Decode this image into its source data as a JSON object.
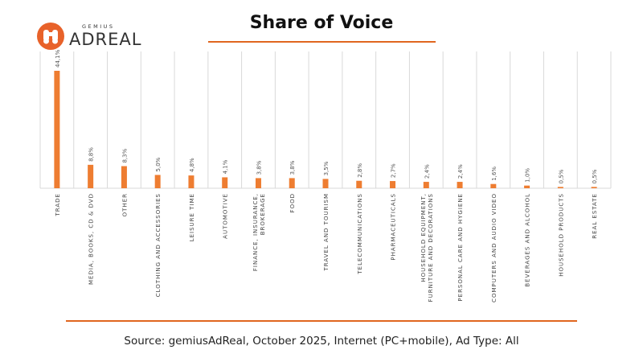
{
  "logo": {
    "small": "GEMIUS",
    "big": "ADREAL"
  },
  "title": "Share of Voice",
  "source": "Source: gemiusAdReal, October 2025, Internet (PC+mobile), Ad Type: All",
  "colors": {
    "bar": "#ee7d31",
    "accent": "#e0661f",
    "grid": "#d9d9d9"
  },
  "chart_data": {
    "type": "bar",
    "categories": [
      [
        "TRADE"
      ],
      [
        "MEDIA, BOOKS, CD & DVD"
      ],
      [
        "OTHER"
      ],
      [
        "CLOTHING AND ACCESSORIES"
      ],
      [
        "LEISURE TIME"
      ],
      [
        "AUTOMOTIVE"
      ],
      [
        "FINANCE, INSURANCE,",
        "BROKERAGE"
      ],
      [
        "FOOD"
      ],
      [
        "TRAVEL AND TOURISM"
      ],
      [
        "TELECOMMUNICATIONS"
      ],
      [
        "PHARMACEUTICALS"
      ],
      [
        "HOUSEHOLD EQUIPMENT,",
        "FURNITURE AND DECORATIONS"
      ],
      [
        "PERSONAL CARE AND HYGIENE"
      ],
      [
        "COMPUTERS AND AUDIO VIDEO"
      ],
      [
        "BEVERAGES AND ALCOHOL"
      ],
      [
        "HOUSEHOLD PRODUCTS"
      ],
      [
        "REAL ESTATE"
      ]
    ],
    "values": [
      44.1,
      8.8,
      8.3,
      5.0,
      4.8,
      4.1,
      3.8,
      3.8,
      3.5,
      2.8,
      2.7,
      2.4,
      2.4,
      1.6,
      1.0,
      0.5,
      0.5
    ],
    "data_labels": [
      "44,1%",
      "8,8%",
      "8,3%",
      "5,0%",
      "4,8%",
      "4,1%",
      "3,8%",
      "3,8%",
      "3,5%",
      "2,8%",
      "2,7%",
      "2,4%",
      "2,4%",
      "1,6%",
      "1,0%",
      "0,5%",
      "0,5%"
    ],
    "ylim": [
      0,
      44.1
    ],
    "grid": true
  }
}
